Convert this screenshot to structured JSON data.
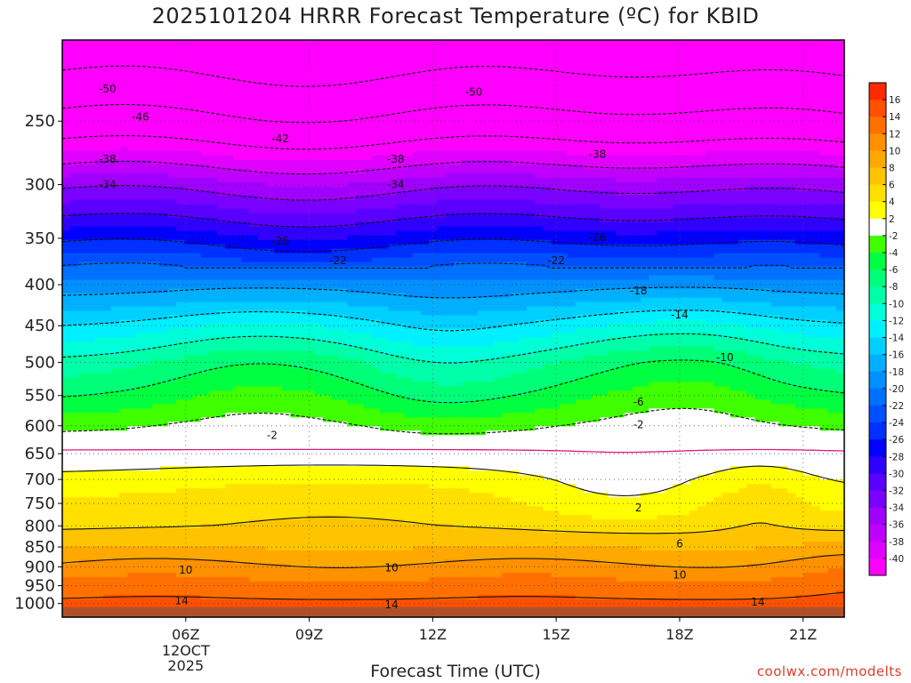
{
  "chart_data": {
    "type": "heatmap",
    "title": "2025101204 HRRR Forecast Temperature (ºC) for KBID",
    "xlabel": "Forecast Time (UTC)",
    "ylabel": "",
    "x_unit": "hours UTC",
    "x_range": [
      3,
      22
    ],
    "x_ticks": [
      {
        "x": 6,
        "label": "06Z",
        "sub": [
          "12OCT",
          "2025"
        ]
      },
      {
        "x": 9,
        "label": "09Z"
      },
      {
        "x": 12,
        "label": "12Z"
      },
      {
        "x": 15,
        "label": "15Z"
      },
      {
        "x": 18,
        "label": "18Z"
      },
      {
        "x": 21,
        "label": "21Z"
      }
    ],
    "y_unit": "hPa",
    "y_scale": "log",
    "y_range": [
      1040,
      198
    ],
    "y_ticks": [
      250,
      300,
      350,
      400,
      450,
      500,
      550,
      600,
      650,
      700,
      750,
      800,
      850,
      900,
      950,
      1000
    ],
    "colorbar": {
      "levels": [
        -40,
        -38,
        -36,
        -34,
        -32,
        -30,
        -28,
        -26,
        -24,
        -22,
        -20,
        -18,
        -16,
        -14,
        -12,
        -10,
        -8,
        -6,
        -4,
        -2,
        2,
        4,
        6,
        8,
        10,
        12,
        14,
        16
      ],
      "labels": [
        "16",
        "14",
        "12",
        "10",
        "8",
        "6",
        "4",
        "2",
        "-2",
        "-4",
        "-6",
        "-8",
        "-10",
        "-12",
        "-14",
        "-16",
        "-18",
        "-20",
        "-22",
        "-24",
        "-26",
        "-28",
        "-30",
        "-32",
        "-34",
        "-36",
        "-38",
        "-40"
      ],
      "colors": [
        "#ff00ff",
        "#e000ff",
        "#c000ff",
        "#a000ff",
        "#7a00ff",
        "#5a00ff",
        "#3000ff",
        "#0000ff",
        "#0030ff",
        "#0050ff",
        "#0070ff",
        "#0090ff",
        "#00b0ff",
        "#00d0ff",
        "#00f0ff",
        "#00ffd8",
        "#00ffa8",
        "#00ff78",
        "#00ff40",
        "#40ff00",
        "#ffffff",
        "#ffff00",
        "#ffe000",
        "#ffc400",
        "#ffa800",
        "#ff9000",
        "#ff7000",
        "#ff5000",
        "#ff2800"
      ]
    },
    "grid": "dotted",
    "surface_color": "#b0502a",
    "contour_labels": [
      {
        "x": 4.1,
        "p": 228,
        "t": "-50"
      },
      {
        "x": 13.0,
        "p": 230,
        "t": "-50"
      },
      {
        "x": 4.9,
        "p": 247,
        "t": "-46"
      },
      {
        "x": 8.3,
        "p": 263,
        "t": "-42"
      },
      {
        "x": 4.1,
        "p": 279,
        "t": "-38"
      },
      {
        "x": 11.1,
        "p": 279,
        "t": "-38"
      },
      {
        "x": 16.0,
        "p": 275,
        "t": "-38"
      },
      {
        "x": 4.1,
        "p": 300,
        "t": "-34"
      },
      {
        "x": 11.1,
        "p": 300,
        "t": "-34"
      },
      {
        "x": 8.3,
        "p": 353,
        "t": "-26"
      },
      {
        "x": 16.0,
        "p": 349,
        "t": "-26"
      },
      {
        "x": 9.7,
        "p": 373,
        "t": "-22"
      },
      {
        "x": 15.0,
        "p": 373,
        "t": "-22"
      },
      {
        "x": 17.0,
        "p": 407,
        "t": "-18"
      },
      {
        "x": 18.0,
        "p": 436,
        "t": "-14"
      },
      {
        "x": 19.1,
        "p": 493,
        "t": "-10"
      },
      {
        "x": 17.0,
        "p": 560,
        "t": "-6"
      },
      {
        "x": 8.1,
        "p": 617,
        "t": "-2"
      },
      {
        "x": 17.0,
        "p": 598,
        "t": "-2"
      },
      {
        "x": 17.0,
        "p": 759,
        "t": "2"
      },
      {
        "x": 18.0,
        "p": 842,
        "t": "6"
      },
      {
        "x": 6.0,
        "p": 908,
        "t": "10"
      },
      {
        "x": 11.0,
        "p": 903,
        "t": "10"
      },
      {
        "x": 18.0,
        "p": 921,
        "t": "10"
      },
      {
        "x": 5.9,
        "p": 992,
        "t": "14"
      },
      {
        "x": 11.0,
        "p": 1003,
        "t": "14"
      },
      {
        "x": 19.9,
        "p": 996,
        "t": "14"
      }
    ]
  },
  "watermark": "coolwx.com/modelts"
}
